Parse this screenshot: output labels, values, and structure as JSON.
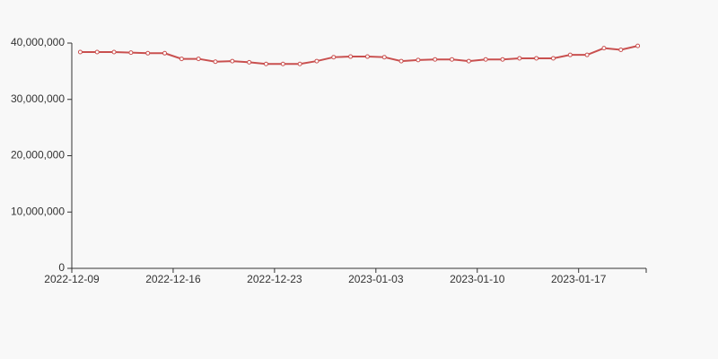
{
  "chart_data": {
    "type": "line",
    "categories": [
      "2022-12-09",
      null,
      null,
      null,
      null,
      null,
      "2022-12-16",
      null,
      null,
      null,
      null,
      null,
      "2022-12-23",
      null,
      null,
      null,
      null,
      null,
      "2023-01-03",
      null,
      null,
      null,
      null,
      null,
      "2023-01-10",
      null,
      null,
      null,
      null,
      null,
      "2023-01-17",
      null,
      null,
      null
    ],
    "series": [
      {
        "color": "#c9504f",
        "values": [
          38400000.0,
          38400000.0,
          38400000.0,
          38300000.0,
          38200000.0,
          38200000.0,
          37200000.0,
          37200000.0,
          36700000.0,
          36800000.0,
          36600000.0,
          36300000.0,
          36300000.0,
          36300000.0,
          36800000.0,
          37500000.0,
          37600000.0,
          37600000.0,
          37500000.0,
          36800000.0,
          37000000.0,
          37100000.0,
          37100000.0,
          36800000.0,
          37100000.0,
          37100000.0,
          37300000.0,
          37300000.0,
          37300000.0,
          37900000.0,
          37900000.0,
          39100000.0,
          38800000.0,
          39500000.0
        ]
      }
    ],
    "ylim": [
      0,
      40000000
    ],
    "yticks": [
      0,
      {
        "value": 10000000,
        "label": "10,000,000"
      },
      {
        "value": 20000000,
        "label": "20,000,000"
      },
      {
        "value": 30000000,
        "label": "30,000,000"
      },
      {
        "value": 40000000,
        "label": "40,000,000"
      }
    ],
    "grid": false
  }
}
